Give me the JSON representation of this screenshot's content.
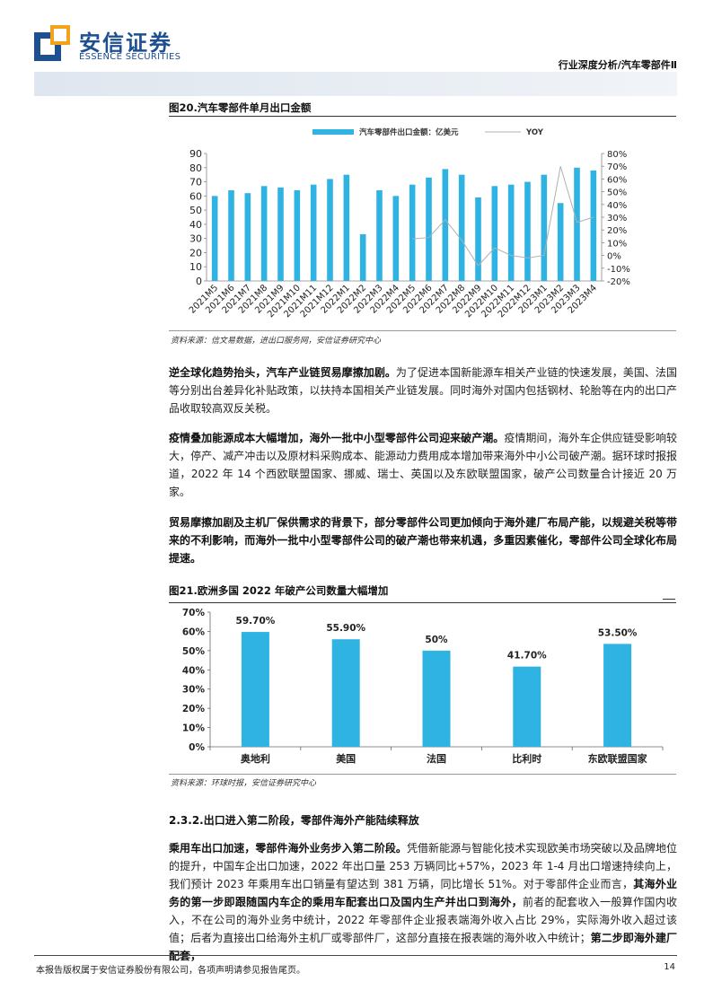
{
  "header": {
    "logo_cn": "安信证券",
    "logo_en": "ESSENCE SECURITIES",
    "report_tag": "行业深度分析/汽车零部件Ⅱ"
  },
  "figure20": {
    "title": "图20.汽车零部件单月出口金额",
    "source": "资料来源：信文易数据，进出口服务网，安信证券研究中心"
  },
  "figure21": {
    "title": "图21.欧洲多国 2022 年破产公司数量大幅增加",
    "source": "资料来源：环球时报，安信证券研究中心"
  },
  "chart_data": [
    {
      "type": "bar",
      "title": "",
      "categories": [
        "2021M5",
        "2021M6",
        "2021M7",
        "2021M8",
        "2021M9",
        "2021M10",
        "2021M11",
        "2021M12",
        "2022M1",
        "2022M2",
        "2022M3",
        "2022M4",
        "2022M5",
        "2022M6",
        "2022M7",
        "2022M8",
        "2022M9",
        "2022M10",
        "2022M11",
        "2022M12",
        "2023M1",
        "2023M2",
        "2023M3",
        "2023M4"
      ],
      "series": [
        {
          "name": "汽车零部件出口金额：亿美元",
          "type": "bar",
          "axis": "left",
          "color": "#2eb3e3",
          "values": [
            60,
            64,
            62,
            67,
            66,
            64,
            68,
            72,
            75,
            33,
            64,
            60,
            68,
            73,
            79,
            75,
            59,
            67,
            68,
            70,
            75,
            55,
            80,
            78
          ]
        },
        {
          "name": "YOY",
          "type": "line",
          "axis": "right",
          "color": "#b0b0b0",
          "values": [
            null,
            null,
            null,
            null,
            null,
            null,
            null,
            null,
            null,
            null,
            null,
            null,
            13,
            14,
            28,
            12,
            -8,
            6,
            0,
            -2,
            0,
            70,
            26,
            30
          ]
        }
      ],
      "ylim": [
        0,
        90
      ],
      "y2lim": [
        -20,
        80
      ],
      "y_ticks": [
        "0",
        "10",
        "20",
        "30",
        "40",
        "50",
        "60",
        "70",
        "80",
        "90"
      ],
      "y2_ticks": [
        "-20%",
        "-10%",
        "0%",
        "10%",
        "20%",
        "30%",
        "40%",
        "50%",
        "60%",
        "70%",
        "80%"
      ],
      "legend": "top-center"
    },
    {
      "type": "bar",
      "title": "",
      "categories": [
        "奥地利",
        "美国",
        "法国",
        "比利时",
        "东欧联盟国家"
      ],
      "values": [
        59.7,
        55.9,
        50,
        41.7,
        53.5
      ],
      "value_labels": [
        "59.70%",
        "55.90%",
        "50%",
        "41.70%",
        "53.50%"
      ],
      "ylim": [
        0,
        70
      ],
      "y_ticks": [
        "0%",
        "10%",
        "20%",
        "30%",
        "40%",
        "50%",
        "60%",
        "70%"
      ],
      "color": "#2eb3e3"
    }
  ],
  "paragraphs": {
    "p1_bold": "逆全球化趋势抬头，汽车产业链贸易摩擦加剧。",
    "p1_text": "为了促进本国新能源车相关产业链的快速发展，美国、法国等分别出台差异化补贴政策，以扶持本国相关产业链发展。同时海外对国内包括钢材、轮胎等在内的出口产品收取较高双反关税。",
    "p2_bold": "疫情叠加能源成本大幅增加，海外一批中小型零部件公司迎来破产潮。",
    "p2_text": "疫情期间，海外车企供应链受影响较大，停产、减产冲击以及原材料采购成本、能源动力费用成本增加带来海外中小公司破产潮。据环球时报报道，2022 年 14 个西欧联盟国家、挪威、瑞士、英国以及东欧联盟国家，破产公司数量合计接近 20 万家。",
    "p3_bold": "贸易摩擦加剧及主机厂保供需求的背景下，部分零部件公司更加倾向于海外建厂布局产能，以规避关税等带来的不利影响，而海外一批中小型零部件公司的破产潮也带来机遇，多重因素催化，零部件公司全球化布局提速。",
    "section": "2.3.2.出口进入第二阶段，零部件海外产能陆续释放",
    "p4_bold1": "乘用车出口加速，零部件海外业务步入第二阶段。",
    "p4_text1": "凭借新能源与智能化技术实现欧美市场突破以及品牌地位的提升，中国车企出口加速，2022 年出口量 253 万辆同比+57%，2023 年 1-4 月出口增速持续向上，我们预计 2023 年乘用车出口销量有望达到 381 万辆，同比增长 51%。对于零部件企业而言，",
    "p4_bold2": "其海外业务的第一步即跟随国内车企的乘用车配套出口及国内生产并出口到海外，",
    "p4_text2": "前者的配套收入一般算作国内收入，不在公司的海外业务中统计，2022 年零部件企业报表端海外收入占比 29%，实际海外收入超过该值；后者为直接出口给海外主机厂或零部件厂，这部分直接在报表端的海外收入中统计；",
    "p4_bold3": "第二步即海外建厂配套，"
  },
  "footer": {
    "disclaimer": "本报告版权属于安信证券股份有限公司，各项声明请参见报告尾页。",
    "page": "14"
  }
}
